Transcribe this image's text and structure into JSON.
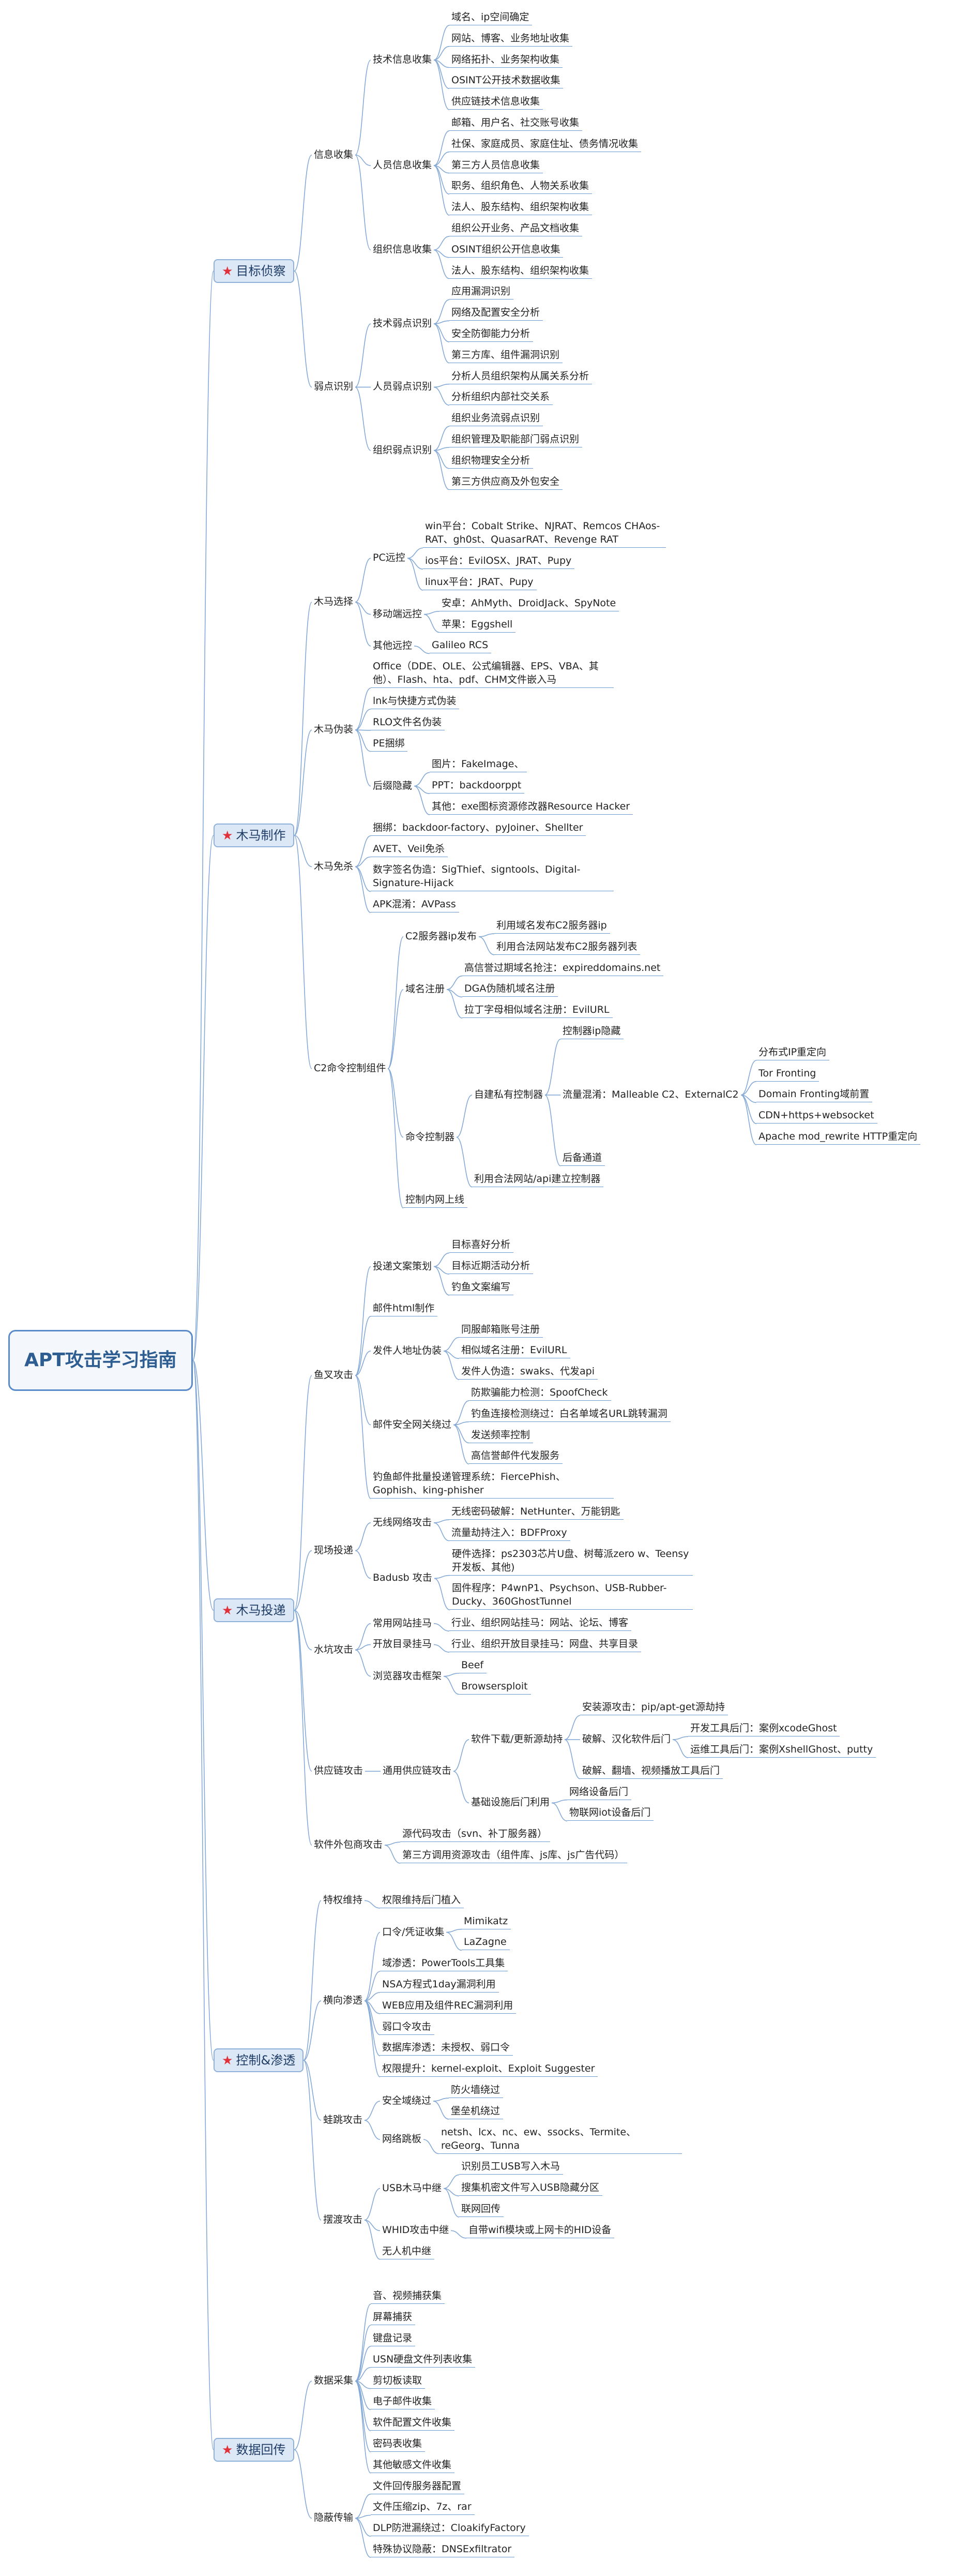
{
  "root": {
    "label": "APT攻击学习指南",
    "children": [
      {
        "label": "目标侦察",
        "children": [
          {
            "label": "信息收集",
            "children": [
              {
                "label": "技术信息收集",
                "children": [
                  {
                    "label": "域名、ip空间确定"
                  },
                  {
                    "label": "网站、博客、业务地址收集"
                  },
                  {
                    "label": "网络拓扑、业务架构收集"
                  },
                  {
                    "label": "OSINT公开技术数据收集"
                  },
                  {
                    "label": "供应链技术信息收集"
                  }
                ]
              },
              {
                "label": "人员信息收集",
                "children": [
                  {
                    "label": "邮箱、用户名、社交账号收集"
                  },
                  {
                    "label": "社保、家庭成员、家庭住址、债务情况收集"
                  },
                  {
                    "label": "第三方人员信息收集"
                  },
                  {
                    "label": "职务、组织角色、人物关系收集"
                  },
                  {
                    "label": "法人、股东结构、组织架构收集"
                  }
                ]
              },
              {
                "label": "组织信息收集",
                "children": [
                  {
                    "label": "组织公开业务、产品文档收集"
                  },
                  {
                    "label": "OSINT组织公开信息收集"
                  },
                  {
                    "label": "法人、股东结构、组织架构收集"
                  }
                ]
              }
            ]
          },
          {
            "label": "弱点识别",
            "children": [
              {
                "label": "技术弱点识别",
                "children": [
                  {
                    "label": "应用漏洞识别"
                  },
                  {
                    "label": "网络及配置安全分析"
                  },
                  {
                    "label": "安全防御能力分析"
                  },
                  {
                    "label": "第三方库、组件漏洞识别"
                  }
                ]
              },
              {
                "label": "人员弱点识别",
                "children": [
                  {
                    "label": "分析人员组织架构从属关系分析"
                  },
                  {
                    "label": "分析组织内部社交关系"
                  }
                ]
              },
              {
                "label": "组织弱点识别",
                "children": [
                  {
                    "label": "组织业务流弱点识别"
                  },
                  {
                    "label": "组织管理及职能部门弱点识别"
                  },
                  {
                    "label": "组织物理安全分析"
                  },
                  {
                    "label": "第三方供应商及外包安全"
                  }
                ]
              }
            ]
          }
        ]
      },
      {
        "label": "木马制作",
        "children": [
          {
            "label": "木马选择",
            "children": [
              {
                "label": "PC远控",
                "children": [
                  {
                    "label": "win平台：Cobalt Strike、NJRAT、Remcos CHAos-RAT、gh0st、QuasarRAT、Revenge RAT"
                  },
                  {
                    "label": "ios平台：EvilOSX、JRAT、Pupy"
                  },
                  {
                    "label": "linux平台：JRAT、Pupy"
                  }
                ]
              },
              {
                "label": "移动端远控",
                "children": [
                  {
                    "label": "安卓：AhMyth、DroidJack、SpyNote"
                  },
                  {
                    "label": "苹果：Eggshell"
                  }
                ]
              },
              {
                "label": "其他远控",
                "children": [
                  {
                    "label": "Galileo RCS"
                  }
                ]
              }
            ]
          },
          {
            "label": "木马伪装",
            "children": [
              {
                "label": "Office（DDE、OLE、公式编辑器、EPS、VBA、其他）、Flash、hta、pdf、CHM文件嵌入马"
              },
              {
                "label": "lnk与快捷方式伪装"
              },
              {
                "label": "RLO文件名伪装"
              },
              {
                "label": "PE捆绑"
              },
              {
                "label": "后缀隐藏",
                "children": [
                  {
                    "label": "图片：FakeImage、"
                  },
                  {
                    "label": "PPT：backdoorppt"
                  },
                  {
                    "label": "其他：exe图标资源修改器Resource Hacker"
                  }
                ]
              }
            ]
          },
          {
            "label": "木马免杀",
            "children": [
              {
                "label": "捆绑：backdoor-factory、pyJoiner、Shellter"
              },
              {
                "label": "AVET、Veil免杀"
              },
              {
                "label": "数字签名伪造：SigThief、signtools、Digital-Signature-Hijack"
              },
              {
                "label": "APK混淆：AVPass"
              }
            ]
          },
          {
            "label": "C2命令控制组件",
            "children": [
              {
                "label": "C2服务器ip发布",
                "children": [
                  {
                    "label": "利用域名发布C2服务器ip"
                  },
                  {
                    "label": "利用合法网站发布C2服务器列表"
                  }
                ]
              },
              {
                "label": "域名注册",
                "children": [
                  {
                    "label": "高信誉过期域名抢注：expireddomains.net"
                  },
                  {
                    "label": "DGA伪随机域名注册"
                  },
                  {
                    "label": "拉丁字母相似域名注册：EvilURL"
                  }
                ]
              },
              {
                "label": "命令控制器",
                "children": [
                  {
                    "label": "自建私有控制器",
                    "children": [
                      {
                        "label": "控制器ip隐藏"
                      },
                      {
                        "label": "流量混淆：Malleable C2、ExternalC2",
                        "children": [
                          {
                            "label": "分布式IP重定向"
                          },
                          {
                            "label": "Tor Fronting"
                          },
                          {
                            "label": "Domain Fronting域前置"
                          },
                          {
                            "label": "CDN+https+websocket"
                          },
                          {
                            "label": "Apache mod_rewrite HTTP重定向"
                          }
                        ]
                      },
                      {
                        "label": "后备通道"
                      }
                    ]
                  },
                  {
                    "label": "利用合法网站/api建立控制器"
                  }
                ]
              },
              {
                "label": "控制内网上线"
              }
            ]
          }
        ]
      },
      {
        "label": "木马投递",
        "children": [
          {
            "label": "鱼叉攻击",
            "children": [
              {
                "label": "投递文案策划",
                "children": [
                  {
                    "label": "目标喜好分析"
                  },
                  {
                    "label": "目标近期活动分析"
                  },
                  {
                    "label": "钓鱼文案编写"
                  }
                ]
              },
              {
                "label": "邮件html制作"
              },
              {
                "label": "发件人地址伪装",
                "children": [
                  {
                    "label": "同服邮箱账号注册"
                  },
                  {
                    "label": "相似域名注册：EvilURL"
                  },
                  {
                    "label": "发件人伪造：swaks、代发api"
                  }
                ]
              },
              {
                "label": "邮件安全网关绕过",
                "children": [
                  {
                    "label": "防欺骗能力检测：SpoofCheck"
                  },
                  {
                    "label": "钓鱼连接检测绕过：白名单域名URL跳转漏洞"
                  },
                  {
                    "label": "发送频率控制"
                  },
                  {
                    "label": "高信誉邮件代发服务"
                  }
                ]
              },
              {
                "label": "钓鱼邮件批量投递管理系统：FiercePhish、Gophish、king-phisher"
              }
            ]
          },
          {
            "label": "现场投递",
            "children": [
              {
                "label": "无线网络攻击",
                "children": [
                  {
                    "label": "无线密码破解：NetHunter、万能钥匙"
                  },
                  {
                    "label": "流量劫持注入：BDFProxy"
                  }
                ]
              },
              {
                "label": "Badusb 攻击",
                "children": [
                  {
                    "label": "硬件选择：ps2303芯片U盘、树莓派zero w、Teensy开发板、其他)"
                  },
                  {
                    "label": "固件程序：P4wnP1、Psychson、USB-Rubber-Ducky、360GhostTunnel"
                  }
                ]
              }
            ]
          },
          {
            "label": "水坑攻击",
            "children": [
              {
                "label": "常用网站挂马",
                "children": [
                  {
                    "label": "行业、组织网站挂马：网站、论坛、博客"
                  }
                ]
              },
              {
                "label": "开放目录挂马",
                "children": [
                  {
                    "label": "行业、组织开放目录挂马：网盘、共享目录"
                  }
                ]
              },
              {
                "label": "浏览器攻击框架",
                "children": [
                  {
                    "label": "Beef"
                  },
                  {
                    "label": "Browsersploit"
                  }
                ]
              }
            ]
          },
          {
            "label": "供应链攻击",
            "children": [
              {
                "label": "通用供应链攻击",
                "children": [
                  {
                    "label": "软件下载/更新源劫持",
                    "children": [
                      {
                        "label": "安装源攻击：pip/apt-get源劫持"
                      },
                      {
                        "label": "破解、汉化软件后门",
                        "children": [
                          {
                            "label": "开发工具后门：案例xcodeGhost"
                          },
                          {
                            "label": "运维工具后门：案例XshellGhost、putty"
                          }
                        ]
                      },
                      {
                        "label": "破解、翻墙、视频播放工具后门"
                      }
                    ]
                  },
                  {
                    "label": "基础设施后门利用",
                    "children": [
                      {
                        "label": "网络设备后门"
                      },
                      {
                        "label": "物联网iot设备后门"
                      }
                    ]
                  }
                ]
              }
            ]
          },
          {
            "label": "软件外包商攻击",
            "children": [
              {
                "label": "源代码攻击（svn、补丁服务器）"
              },
              {
                "label": "第三方调用资源攻击（组件库、js库、js广告代码）"
              }
            ]
          }
        ]
      },
      {
        "label": "控制&渗透",
        "children": [
          {
            "label": "特权维持",
            "children": [
              {
                "label": "权限维持后门植入"
              }
            ]
          },
          {
            "label": "横向渗透",
            "children": [
              {
                "label": "口令/凭证收集",
                "children": [
                  {
                    "label": "Mimikatz"
                  },
                  {
                    "label": "LaZagne"
                  }
                ]
              },
              {
                "label": "域渗透：PowerTools工具集"
              },
              {
                "label": "NSA方程式1day漏洞利用"
              },
              {
                "label": "WEB应用及组件REC漏洞利用"
              },
              {
                "label": "弱口令攻击"
              },
              {
                "label": "数据库渗透：未授权、弱口令"
              },
              {
                "label": "权限提升：kernel-exploit、Exploit Suggester"
              }
            ]
          },
          {
            "label": "蛙跳攻击",
            "children": [
              {
                "label": "安全域绕过",
                "children": [
                  {
                    "label": "防火墙绕过"
                  },
                  {
                    "label": "堡垒机绕过"
                  }
                ]
              },
              {
                "label": "网络跳板",
                "children": [
                  {
                    "label": "netsh、lcx、nc、ew、ssocks、Termite、reGeorg、Tunna"
                  }
                ]
              }
            ]
          },
          {
            "label": "摆渡攻击",
            "children": [
              {
                "label": "USB木马中继",
                "children": [
                  {
                    "label": "识别员工USB写入木马"
                  },
                  {
                    "label": "搜集机密文件写入USB隐藏分区"
                  },
                  {
                    "label": "联网回传"
                  }
                ]
              },
              {
                "label": "WHID攻击中继",
                "children": [
                  {
                    "label": "自带wifi模块或上网卡的HID设备"
                  }
                ]
              },
              {
                "label": "无人机中继"
              }
            ]
          }
        ]
      },
      {
        "label": "数据回传",
        "children": [
          {
            "label": "数据采集",
            "children": [
              {
                "label": "音、视频捕获集"
              },
              {
                "label": "屏幕捕获"
              },
              {
                "label": "键盘记录"
              },
              {
                "label": "USN硬盘文件列表收集"
              },
              {
                "label": "剪切板读取"
              },
              {
                "label": "电子邮件收集"
              },
              {
                "label": "软件配置文件收集"
              },
              {
                "label": "密码表收集"
              },
              {
                "label": "其他敏感文件收集"
              }
            ]
          },
          {
            "label": "隐蔽传输",
            "children": [
              {
                "label": "文件回传服务器配置"
              },
              {
                "label": "文件压缩zip、7z、rar"
              },
              {
                "label": "DLP防泄漏绕过：CloakifyFactory"
              },
              {
                "label": "特殊协议隐蔽：DNSExfiltrator"
              }
            ]
          }
        ]
      }
    ]
  }
}
